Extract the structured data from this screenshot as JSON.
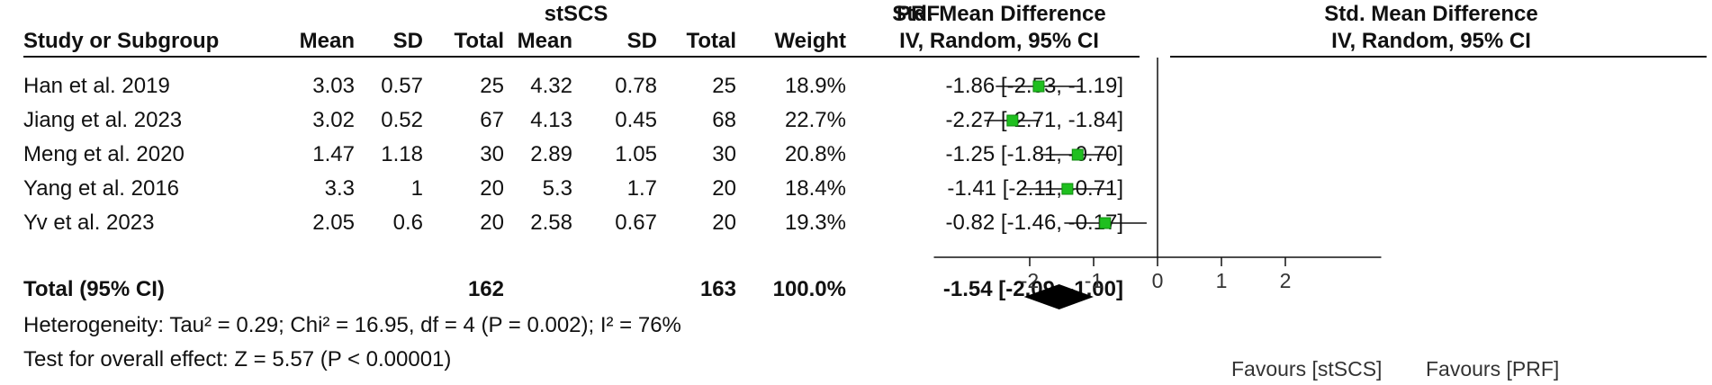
{
  "table": {
    "group_headers": {
      "experimental": "stSCS",
      "control": "PRF",
      "effect": "Std. Mean Difference",
      "plot": "Std. Mean Difference"
    },
    "column_headers": {
      "study": "Study or Subgroup",
      "mean1": "Mean",
      "sd1": "SD",
      "total1": "Total",
      "mean2": "Mean",
      "sd2": "SD",
      "total2": "Total",
      "weight": "Weight",
      "ci": "IV, Random, 95% CI",
      "plot_ci": "IV, Random, 95% CI"
    },
    "rows": [
      {
        "study": "Han et al. 2019",
        "mean1": "3.03",
        "sd1": "0.57",
        "total1": "25",
        "mean2": "4.32",
        "sd2": "0.78",
        "total2": "25",
        "weight": "18.9%",
        "ci": "-1.86 [-2.53, -1.19]"
      },
      {
        "study": "Jiang et al. 2023",
        "mean1": "3.02",
        "sd1": "0.52",
        "total1": "67",
        "mean2": "4.13",
        "sd2": "0.45",
        "total2": "68",
        "weight": "22.7%",
        "ci": "-2.27 [-2.71, -1.84]"
      },
      {
        "study": "Meng et al. 2020",
        "mean1": "1.47",
        "sd1": "1.18",
        "total1": "30",
        "mean2": "2.89",
        "sd2": "1.05",
        "total2": "30",
        "weight": "20.8%",
        "ci": "-1.25 [-1.81, -0.70]"
      },
      {
        "study": "Yang et al. 2016",
        "mean1": "3.3",
        "sd1": "1",
        "total1": "20",
        "mean2": "5.3",
        "sd2": "1.7",
        "total2": "20",
        "weight": "18.4%",
        "ci": "-1.41 [-2.11, -0.71]"
      },
      {
        "study": "Yv et al. 2023",
        "mean1": "2.05",
        "sd1": "0.6",
        "total1": "20",
        "mean2": "2.58",
        "sd2": "0.67",
        "total2": "20",
        "weight": "19.3%",
        "ci": "-0.82 [-1.46, -0.17]"
      }
    ],
    "total": {
      "label": "Total (95% CI)",
      "total1": "162",
      "total2": "163",
      "weight": "100.0%",
      "ci": "-1.54 [-2.09, -1.00]"
    },
    "heterogeneity": "Heterogeneity: Tau² = 0.29; Chi² = 16.95, df = 4 (P = 0.002); I² = 76%",
    "overall_effect": "Test for overall effect: Z = 5.57 (P < 0.00001)"
  },
  "chart_data": {
    "type": "scatter",
    "subtype": "forest",
    "x_ticks": [
      "-2",
      "-1",
      "0",
      "1",
      "2"
    ],
    "xlim": [
      -3.5,
      3.5
    ],
    "favours_left": "Favours [stSCS]",
    "favours_right": "Favours [PRF]",
    "studies": [
      {
        "est": -1.86,
        "lo": -2.53,
        "hi": -1.19
      },
      {
        "est": -2.27,
        "lo": -2.71,
        "hi": -1.84
      },
      {
        "est": -1.25,
        "lo": -1.81,
        "hi": -0.7
      },
      {
        "est": -1.41,
        "lo": -2.11,
        "hi": -0.71
      },
      {
        "est": -0.82,
        "lo": -1.46,
        "hi": -0.17
      }
    ],
    "pooled": {
      "est": -1.54,
      "lo": -2.09,
      "hi": -1.0
    },
    "colors": {
      "marker": "#1fbf1f",
      "marker_edge": "#0f8a0f",
      "diamond": "#000000",
      "line": "#111111"
    }
  }
}
